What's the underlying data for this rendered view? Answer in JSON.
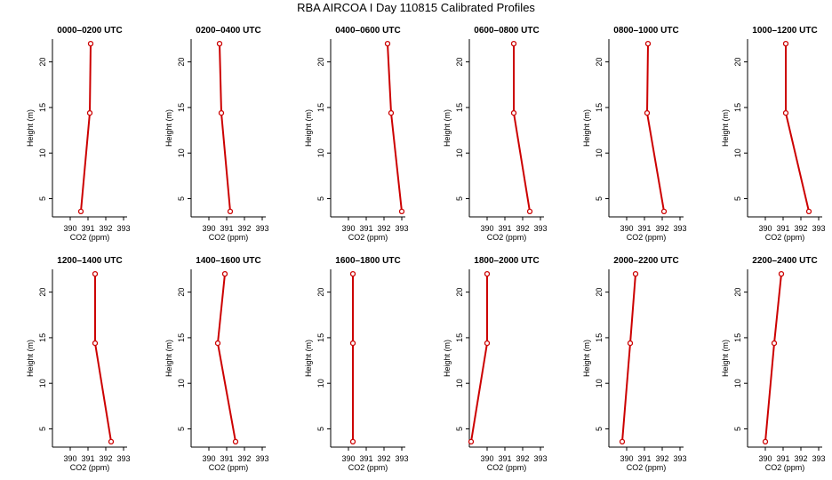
{
  "title": "RBA AIRCOA I  Day 110815  Calibrated Profiles",
  "colors": {
    "profile_line": "#cc0000",
    "axis": "#000000",
    "background": "#ffffff"
  },
  "chart_data": [
    {
      "type": "line",
      "title": "0000–0200 UTC",
      "xlabel": "CO2 (ppm)",
      "ylabel": "Height (m)",
      "xticks": [
        390,
        391,
        392,
        393
      ],
      "yticks": [
        5,
        10,
        15,
        20
      ],
      "xlim": [
        389.0,
        393.2
      ],
      "ylim": [
        3.0,
        22.5
      ],
      "grid": false,
      "series": [
        {
          "x": [
            390.6,
            391.1,
            391.15
          ],
          "y": [
            3.6,
            14.4,
            22.0
          ]
        }
      ]
    },
    {
      "type": "line",
      "title": "0200–0400 UTC",
      "xlabel": "CO2 (ppm)",
      "ylabel": "Height (m)",
      "xticks": [
        390,
        391,
        392,
        393
      ],
      "yticks": [
        5,
        10,
        15,
        20
      ],
      "xlim": [
        389.0,
        393.2
      ],
      "ylim": [
        3.0,
        22.5
      ],
      "grid": false,
      "series": [
        {
          "x": [
            391.2,
            390.7,
            390.6
          ],
          "y": [
            3.6,
            14.4,
            22.0
          ]
        }
      ]
    },
    {
      "type": "line",
      "title": "0400–0600 UTC",
      "xlabel": "CO2 (ppm)",
      "ylabel": "Height (m)",
      "xticks": [
        390,
        391,
        392,
        393
      ],
      "yticks": [
        5,
        10,
        15,
        20
      ],
      "xlim": [
        389.0,
        393.2
      ],
      "ylim": [
        3.0,
        22.5
      ],
      "grid": false,
      "series": [
        {
          "x": [
            393.0,
            392.4,
            392.2
          ],
          "y": [
            3.6,
            14.4,
            22.0
          ]
        }
      ]
    },
    {
      "type": "line",
      "title": "0600–0800 UTC",
      "xlabel": "CO2 (ppm)",
      "ylabel": "Height (m)",
      "xticks": [
        390,
        391,
        392,
        393
      ],
      "yticks": [
        5,
        10,
        15,
        20
      ],
      "xlim": [
        389.0,
        393.2
      ],
      "ylim": [
        3.0,
        22.5
      ],
      "grid": false,
      "series": [
        {
          "x": [
            392.4,
            391.5,
            391.5
          ],
          "y": [
            3.6,
            14.4,
            22.0
          ]
        }
      ]
    },
    {
      "type": "line",
      "title": "0800–1000 UTC",
      "xlabel": "CO2 (ppm)",
      "ylabel": "Height (m)",
      "xticks": [
        390,
        391,
        392,
        393
      ],
      "yticks": [
        5,
        10,
        15,
        20
      ],
      "xlim": [
        389.0,
        393.2
      ],
      "ylim": [
        3.0,
        22.5
      ],
      "grid": false,
      "series": [
        {
          "x": [
            392.1,
            391.15,
            391.2
          ],
          "y": [
            3.6,
            14.4,
            22.0
          ]
        }
      ]
    },
    {
      "type": "line",
      "title": "1000–1200 UTC",
      "xlabel": "CO2 (ppm)",
      "ylabel": "Height (m)",
      "xticks": [
        390,
        391,
        392,
        393
      ],
      "yticks": [
        5,
        10,
        15,
        20
      ],
      "xlim": [
        389.0,
        393.2
      ],
      "ylim": [
        3.0,
        22.5
      ],
      "grid": false,
      "series": [
        {
          "x": [
            392.45,
            391.15,
            391.15
          ],
          "y": [
            3.6,
            14.4,
            22.0
          ]
        }
      ]
    },
    {
      "type": "line",
      "title": "1200–1400 UTC",
      "xlabel": "CO2 (ppm)",
      "ylabel": "Height (m)",
      "xticks": [
        390,
        391,
        392,
        393
      ],
      "yticks": [
        5,
        10,
        15,
        20
      ],
      "xlim": [
        389.0,
        393.2
      ],
      "ylim": [
        3.0,
        22.5
      ],
      "grid": false,
      "series": [
        {
          "x": [
            392.3,
            391.4,
            391.4
          ],
          "y": [
            3.6,
            14.4,
            22.0
          ]
        }
      ]
    },
    {
      "type": "line",
      "title": "1400–1600 UTC",
      "xlabel": "CO2 (ppm)",
      "ylabel": "Height (m)",
      "xticks": [
        390,
        391,
        392,
        393
      ],
      "yticks": [
        5,
        10,
        15,
        20
      ],
      "xlim": [
        389.0,
        393.2
      ],
      "ylim": [
        3.0,
        22.5
      ],
      "grid": false,
      "series": [
        {
          "x": [
            391.5,
            390.5,
            390.9
          ],
          "y": [
            3.6,
            14.4,
            22.0
          ]
        }
      ]
    },
    {
      "type": "line",
      "title": "1600–1800 UTC",
      "xlabel": "CO2 (ppm)",
      "ylabel": "Height (m)",
      "xticks": [
        390,
        391,
        392,
        393
      ],
      "yticks": [
        5,
        10,
        15,
        20
      ],
      "xlim": [
        389.0,
        393.2
      ],
      "ylim": [
        3.0,
        22.5
      ],
      "grid": false,
      "series": [
        {
          "x": [
            390.25,
            390.25,
            390.25
          ],
          "y": [
            3.6,
            14.4,
            22.0
          ]
        }
      ]
    },
    {
      "type": "line",
      "title": "1800–2000 UTC",
      "xlabel": "CO2 (ppm)",
      "ylabel": "Height (m)",
      "xticks": [
        390,
        391,
        392,
        393
      ],
      "yticks": [
        5,
        10,
        15,
        20
      ],
      "xlim": [
        389.0,
        393.2
      ],
      "ylim": [
        3.0,
        22.5
      ],
      "grid": false,
      "series": [
        {
          "x": [
            389.1,
            390.0,
            390.0
          ],
          "y": [
            3.6,
            14.4,
            22.0
          ]
        }
      ]
    },
    {
      "type": "line",
      "title": "2000–2200 UTC",
      "xlabel": "CO2 (ppm)",
      "ylabel": "Height (m)",
      "xticks": [
        390,
        391,
        392,
        393
      ],
      "yticks": [
        5,
        10,
        15,
        20
      ],
      "xlim": [
        389.0,
        393.2
      ],
      "ylim": [
        3.0,
        22.5
      ],
      "grid": false,
      "series": [
        {
          "x": [
            389.75,
            390.2,
            390.5
          ],
          "y": [
            3.6,
            14.4,
            22.0
          ]
        }
      ]
    },
    {
      "type": "line",
      "title": "2200–2400 UTC",
      "xlabel": "CO2 (ppm)",
      "ylabel": "Height (m)",
      "xticks": [
        390,
        391,
        392,
        393
      ],
      "yticks": [
        5,
        10,
        15,
        20
      ],
      "xlim": [
        389.0,
        393.2
      ],
      "ylim": [
        3.0,
        22.5
      ],
      "grid": false,
      "series": [
        {
          "x": [
            390.0,
            390.5,
            390.9
          ],
          "y": [
            3.6,
            14.4,
            22.0
          ]
        }
      ]
    }
  ]
}
